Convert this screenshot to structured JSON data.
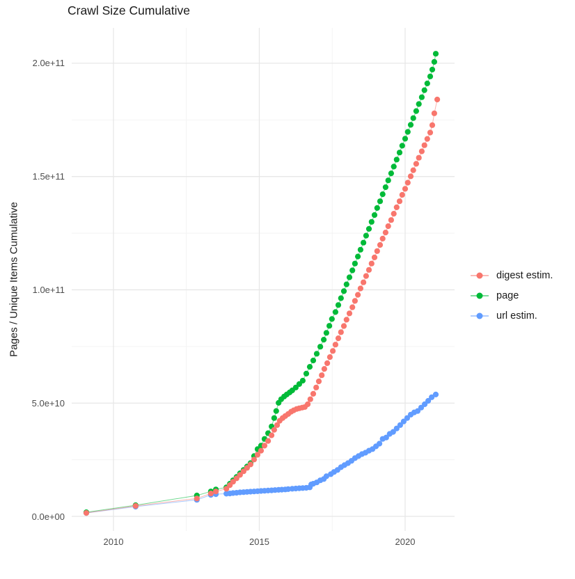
{
  "title": "Crawl Size Cumulative",
  "chart_data": {
    "type": "scatter",
    "title": "Crawl Size Cumulative",
    "xlabel": "",
    "ylabel": "Pages / Unique Items Cumulative",
    "y_value_unit": "1e9 pages (values below are billions)",
    "xlim": [
      2008.6,
      2021.8
    ],
    "ylim_billions": [
      0,
      210
    ],
    "grid": true,
    "legend_position": "right",
    "x_ticks": [
      {
        "label": "2010",
        "value": 2010
      },
      {
        "label": "2015",
        "value": 2015
      },
      {
        "label": "2020",
        "value": 2020
      }
    ],
    "x_minor_ticks": [
      2012.5,
      2017.5
    ],
    "y_ticks": [
      {
        "label": "0.0e+00",
        "value": 0
      },
      {
        "label": "5.0e+10",
        "value": 50
      },
      {
        "label": "1.0e+11",
        "value": 100
      },
      {
        "label": "1.5e+11",
        "value": 150
      },
      {
        "label": "2.0e+11",
        "value": 200
      }
    ],
    "y_minor_ticks": [
      25,
      75,
      125,
      175
    ],
    "colors": {
      "digest": "#F8766D",
      "page": "#00BA38",
      "url": "#619CFF"
    },
    "series": [
      {
        "name": "digest estim.",
        "color": "#F8766D",
        "points": [
          [
            2009.07,
            1.5
          ],
          [
            2010.76,
            4.6
          ],
          [
            2012.86,
            7.9
          ],
          [
            2013.34,
            10.1
          ],
          [
            2013.51,
            11.0
          ],
          [
            2013.87,
            12.2
          ],
          [
            2013.99,
            13.8
          ],
          [
            2014.1,
            15.3
          ],
          [
            2014.22,
            16.8
          ],
          [
            2014.34,
            18.3
          ],
          [
            2014.46,
            19.9
          ],
          [
            2014.58,
            21.4
          ],
          [
            2014.7,
            22.9
          ],
          [
            2014.82,
            25.1
          ],
          [
            2014.94,
            27.2
          ],
          [
            2015.06,
            29.0
          ],
          [
            2015.18,
            31.2
          ],
          [
            2015.3,
            33.3
          ],
          [
            2015.42,
            35.8
          ],
          [
            2015.51,
            38.2
          ],
          [
            2015.61,
            40.3
          ],
          [
            2015.7,
            42.2
          ],
          [
            2015.8,
            43.4
          ],
          [
            2015.89,
            44.3
          ],
          [
            2015.99,
            45.2
          ],
          [
            2016.09,
            46.2
          ],
          [
            2016.18,
            46.8
          ],
          [
            2016.28,
            47.4
          ],
          [
            2016.37,
            47.7
          ],
          [
            2016.47,
            48.0
          ],
          [
            2016.56,
            48.3
          ],
          [
            2016.66,
            49.5
          ],
          [
            2016.75,
            51.7
          ],
          [
            2016.85,
            54.1
          ],
          [
            2016.95,
            56.9
          ],
          [
            2017.04,
            59.6
          ],
          [
            2017.14,
            62.3
          ],
          [
            2017.23,
            65.1
          ],
          [
            2017.33,
            67.6
          ],
          [
            2017.42,
            70.3
          ],
          [
            2017.52,
            73.0
          ],
          [
            2017.61,
            75.8
          ],
          [
            2017.71,
            78.6
          ],
          [
            2017.8,
            81.3
          ],
          [
            2017.9,
            84.0
          ],
          [
            2017.99,
            86.8
          ],
          [
            2018.09,
            89.6
          ],
          [
            2018.19,
            92.3
          ],
          [
            2018.28,
            95.1
          ],
          [
            2018.38,
            97.8
          ],
          [
            2018.47,
            100.6
          ],
          [
            2018.57,
            103.3
          ],
          [
            2018.66,
            106.1
          ],
          [
            2018.76,
            108.8
          ],
          [
            2018.85,
            111.6
          ],
          [
            2018.95,
            114.3
          ],
          [
            2019.04,
            117.1
          ],
          [
            2019.14,
            119.8
          ],
          [
            2019.23,
            122.6
          ],
          [
            2019.33,
            125.3
          ],
          [
            2019.42,
            128.1
          ],
          [
            2019.52,
            130.8
          ],
          [
            2019.61,
            133.6
          ],
          [
            2019.71,
            136.4
          ],
          [
            2019.81,
            139.1
          ],
          [
            2019.9,
            141.9
          ],
          [
            2020.0,
            144.6
          ],
          [
            2020.09,
            147.3
          ],
          [
            2020.19,
            150.1
          ],
          [
            2020.28,
            152.8
          ],
          [
            2020.38,
            155.6
          ],
          [
            2020.47,
            158.3
          ],
          [
            2020.57,
            161.1
          ],
          [
            2020.66,
            163.8
          ],
          [
            2020.76,
            166.6
          ],
          [
            2020.86,
            169.4
          ],
          [
            2020.93,
            172.7
          ],
          [
            2021.0,
            177.9
          ],
          [
            2021.1,
            184.0
          ]
        ]
      },
      {
        "name": "page",
        "color": "#00BA38",
        "points": [
          [
            2009.07,
            1.8
          ],
          [
            2010.76,
            4.9
          ],
          [
            2012.86,
            9.2
          ],
          [
            2013.34,
            11.0
          ],
          [
            2013.51,
            11.9
          ],
          [
            2013.87,
            12.8
          ],
          [
            2013.99,
            14.4
          ],
          [
            2014.1,
            15.9
          ],
          [
            2014.22,
            17.4
          ],
          [
            2014.34,
            19.0
          ],
          [
            2014.46,
            20.5
          ],
          [
            2014.58,
            22.0
          ],
          [
            2014.7,
            23.5
          ],
          [
            2014.82,
            26.6
          ],
          [
            2014.94,
            29.7
          ],
          [
            2015.06,
            31.2
          ],
          [
            2015.18,
            34.2
          ],
          [
            2015.3,
            36.7
          ],
          [
            2015.42,
            39.7
          ],
          [
            2015.51,
            43.4
          ],
          [
            2015.58,
            46.5
          ],
          [
            2015.66,
            50.1
          ],
          [
            2015.75,
            51.7
          ],
          [
            2015.85,
            52.9
          ],
          [
            2015.94,
            53.8
          ],
          [
            2016.04,
            54.7
          ],
          [
            2016.13,
            55.6
          ],
          [
            2016.25,
            56.9
          ],
          [
            2016.37,
            58.4
          ],
          [
            2016.49,
            59.9
          ],
          [
            2016.61,
            63.0
          ],
          [
            2016.73,
            66.0
          ],
          [
            2016.85,
            68.8
          ],
          [
            2016.97,
            71.8
          ],
          [
            2017.09,
            74.9
          ],
          [
            2017.21,
            78.0
          ],
          [
            2017.3,
            81.0
          ],
          [
            2017.4,
            84.1
          ],
          [
            2017.49,
            87.1
          ],
          [
            2017.61,
            90.2
          ],
          [
            2017.71,
            93.3
          ],
          [
            2017.8,
            96.3
          ],
          [
            2017.9,
            99.4
          ],
          [
            2017.99,
            102.4
          ],
          [
            2018.09,
            105.5
          ],
          [
            2018.19,
            108.6
          ],
          [
            2018.28,
            111.6
          ],
          [
            2018.38,
            114.7
          ],
          [
            2018.47,
            117.7
          ],
          [
            2018.57,
            120.8
          ],
          [
            2018.66,
            123.9
          ],
          [
            2018.76,
            126.9
          ],
          [
            2018.85,
            130.0
          ],
          [
            2018.95,
            133.0
          ],
          [
            2019.04,
            136.1
          ],
          [
            2019.14,
            139.1
          ],
          [
            2019.23,
            142.2
          ],
          [
            2019.33,
            145.3
          ],
          [
            2019.42,
            148.3
          ],
          [
            2019.52,
            151.4
          ],
          [
            2019.61,
            154.4
          ],
          [
            2019.71,
            157.5
          ],
          [
            2019.81,
            160.6
          ],
          [
            2019.9,
            163.6
          ],
          [
            2020.0,
            166.7
          ],
          [
            2020.09,
            169.7
          ],
          [
            2020.19,
            172.8
          ],
          [
            2020.28,
            175.8
          ],
          [
            2020.38,
            178.9
          ],
          [
            2020.47,
            182.0
          ],
          [
            2020.57,
            185.0
          ],
          [
            2020.66,
            188.1
          ],
          [
            2020.76,
            191.1
          ],
          [
            2020.86,
            194.2
          ],
          [
            2020.93,
            197.2
          ],
          [
            2021.0,
            200.6
          ],
          [
            2021.05,
            204.2
          ]
        ]
      },
      {
        "name": "url estim.",
        "color": "#619CFF",
        "points": [
          [
            2009.07,
            1.5
          ],
          [
            2010.76,
            4.3
          ],
          [
            2012.86,
            7.3
          ],
          [
            2013.34,
            9.5
          ],
          [
            2013.51,
            9.8
          ],
          [
            2013.87,
            10.0
          ],
          [
            2013.99,
            10.1
          ],
          [
            2014.1,
            10.3
          ],
          [
            2014.22,
            10.4
          ],
          [
            2014.34,
            10.6
          ],
          [
            2014.46,
            10.7
          ],
          [
            2014.58,
            10.8
          ],
          [
            2014.7,
            10.9
          ],
          [
            2014.82,
            11.0
          ],
          [
            2014.94,
            11.1
          ],
          [
            2015.06,
            11.2
          ],
          [
            2015.18,
            11.3
          ],
          [
            2015.3,
            11.4
          ],
          [
            2015.42,
            11.5
          ],
          [
            2015.54,
            11.6
          ],
          [
            2015.66,
            11.7
          ],
          [
            2015.77,
            11.8
          ],
          [
            2015.89,
            11.9
          ],
          [
            2015.99,
            12.0
          ],
          [
            2016.13,
            12.2
          ],
          [
            2016.25,
            12.3
          ],
          [
            2016.37,
            12.4
          ],
          [
            2016.49,
            12.5
          ],
          [
            2016.61,
            12.6
          ],
          [
            2016.73,
            12.8
          ],
          [
            2016.78,
            14.1
          ],
          [
            2016.85,
            14.4
          ],
          [
            2016.97,
            15.0
          ],
          [
            2017.09,
            15.9
          ],
          [
            2017.21,
            16.5
          ],
          [
            2017.3,
            17.7
          ],
          [
            2017.45,
            18.6
          ],
          [
            2017.56,
            19.6
          ],
          [
            2017.68,
            20.5
          ],
          [
            2017.8,
            21.7
          ],
          [
            2017.92,
            22.6
          ],
          [
            2018.04,
            23.5
          ],
          [
            2018.16,
            24.5
          ],
          [
            2018.28,
            25.7
          ],
          [
            2018.4,
            26.6
          ],
          [
            2018.52,
            27.5
          ],
          [
            2018.64,
            28.1
          ],
          [
            2018.76,
            29.0
          ],
          [
            2018.88,
            29.7
          ],
          [
            2019.0,
            30.9
          ],
          [
            2019.12,
            32.1
          ],
          [
            2019.23,
            34.2
          ],
          [
            2019.35,
            34.8
          ],
          [
            2019.47,
            36.4
          ],
          [
            2019.59,
            37.3
          ],
          [
            2019.71,
            38.8
          ],
          [
            2019.83,
            40.3
          ],
          [
            2019.95,
            41.9
          ],
          [
            2020.07,
            43.4
          ],
          [
            2020.19,
            44.9
          ],
          [
            2020.31,
            45.9
          ],
          [
            2020.43,
            46.5
          ],
          [
            2020.55,
            48.0
          ],
          [
            2020.67,
            49.5
          ],
          [
            2020.79,
            51.0
          ],
          [
            2020.91,
            52.6
          ],
          [
            2021.05,
            53.8
          ]
        ]
      }
    ]
  },
  "legend": {
    "items": [
      {
        "label": "digest estim."
      },
      {
        "label": "page"
      },
      {
        "label": "url estim."
      }
    ]
  }
}
